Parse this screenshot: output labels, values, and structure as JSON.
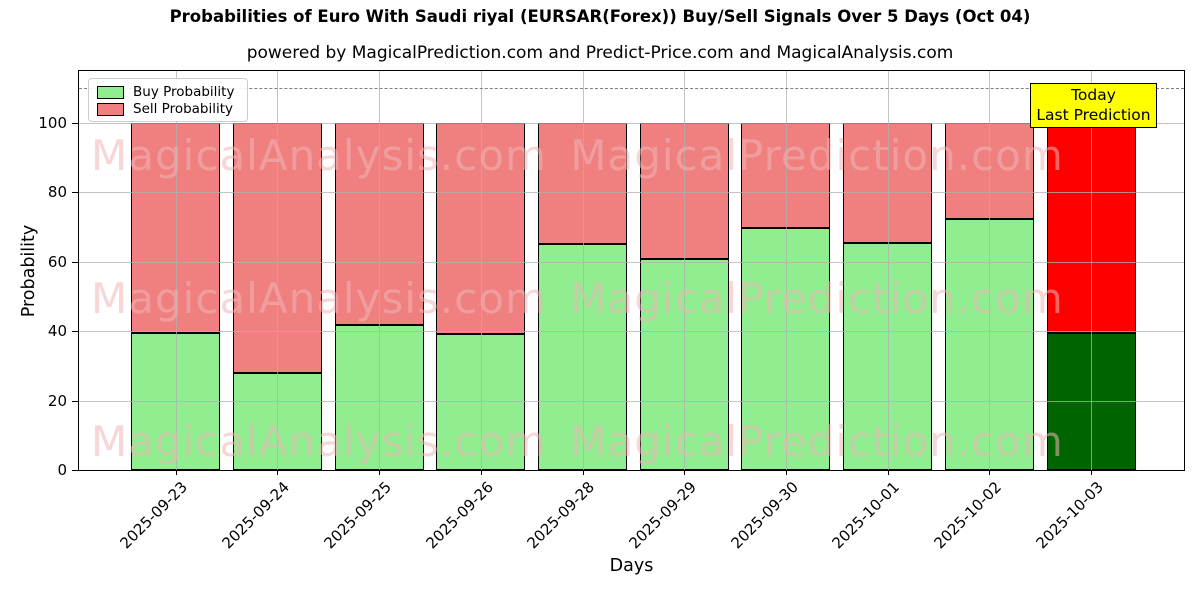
{
  "chart": {
    "title": "Probabilities of Euro With Saudi riyal (EURSAR(Forex)) Buy/Sell Signals Over 5 Days (Oct 04)",
    "subtitle": "powered by MagicalPrediction.com and Predict-Price.com and MagicalAnalysis.com",
    "xlabel": "Days",
    "ylabel": "Probability"
  },
  "chart_data": {
    "type": "bar",
    "stacked": true,
    "title": "Probabilities of Euro With Saudi riyal (EURSAR(Forex)) Buy/Sell Signals Over 5 Days (Oct 04)",
    "xlabel": "Days",
    "ylabel": "Probability",
    "categories": [
      "2025-09-23",
      "2025-09-24",
      "2025-09-25",
      "2025-09-26",
      "2025-09-28",
      "2025-09-29",
      "2025-09-30",
      "2025-10-01",
      "2025-10-02",
      "2025-10-03"
    ],
    "series": [
      {
        "name": "Buy Probability",
        "color": "#90ee90",
        "today_color": "#006400",
        "values": [
          39.4,
          27.9,
          41.9,
          39.3,
          65.1,
          60.9,
          69.8,
          65.5,
          72.4,
          39.4
        ]
      },
      {
        "name": "Sell Probability",
        "color": "#f08080",
        "today_color": "#ff0000",
        "values": [
          60.6,
          72.1,
          58.1,
          60.7,
          34.9,
          39.1,
          30.2,
          34.5,
          27.6,
          60.6
        ]
      }
    ],
    "ylim": [
      0,
      115
    ],
    "yticks": [
      0,
      20,
      40,
      60,
      80,
      100
    ],
    "grid": true,
    "legend_position": "upper left",
    "reference_line": {
      "y": 110,
      "style": "dashed",
      "color": "#7f7f7f"
    },
    "today_index": 9
  },
  "legend": {
    "items": [
      {
        "label": "Buy Probability",
        "color": "#90ee90"
      },
      {
        "label": "Sell Probability",
        "color": "#f08080"
      }
    ]
  },
  "annotation": {
    "line1": "Today",
    "line2": "Last Prediction",
    "bg_color": "#ffff00"
  },
  "watermark": {
    "left_text": "MagicalAnalysis.com",
    "right_text": "MagicalPrediction.com"
  }
}
